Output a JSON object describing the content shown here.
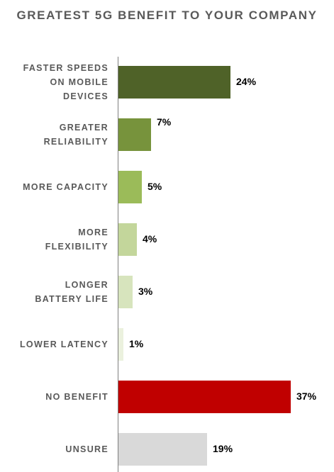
{
  "chart_data": {
    "type": "bar",
    "orientation": "horizontal",
    "title": "GREATEST 5G BENEFIT TO YOUR COMPANY",
    "categories": [
      "FASTER SPEEDS ON MOBILE DEVICES",
      "GREATER RELIABILITY",
      "MORE CAPACITY",
      "MORE FLEXIBILITY",
      "LONGER BATTERY LIFE",
      "LOWER LATENCY",
      "NO BENEFIT",
      "UNSURE"
    ],
    "category_lines": [
      [
        "FASTER SPEEDS",
        "ON MOBILE",
        "DEVICES"
      ],
      [
        "GREATER",
        "RELIABILITY"
      ],
      [
        "MORE CAPACITY"
      ],
      [
        "MORE",
        "FLEXIBILITY"
      ],
      [
        "LONGER",
        "BATTERY LIFE"
      ],
      [
        "LOWER LATENCY"
      ],
      [
        "NO BENEFIT"
      ],
      [
        "UNSURE"
      ]
    ],
    "values": [
      24,
      7,
      5,
      4,
      3,
      1,
      37,
      19
    ],
    "value_labels": [
      "24%",
      "7%",
      "5%",
      "4%",
      "3%",
      "1%",
      "37%",
      "19%"
    ],
    "colors": [
      "#4f6228",
      "#77933c",
      "#9bbb59",
      "#c3d69b",
      "#d7e4bd",
      "#ebf1de",
      "#c00000",
      "#d9d9d9"
    ],
    "xlim": [
      0,
      37
    ],
    "grid": false
  }
}
